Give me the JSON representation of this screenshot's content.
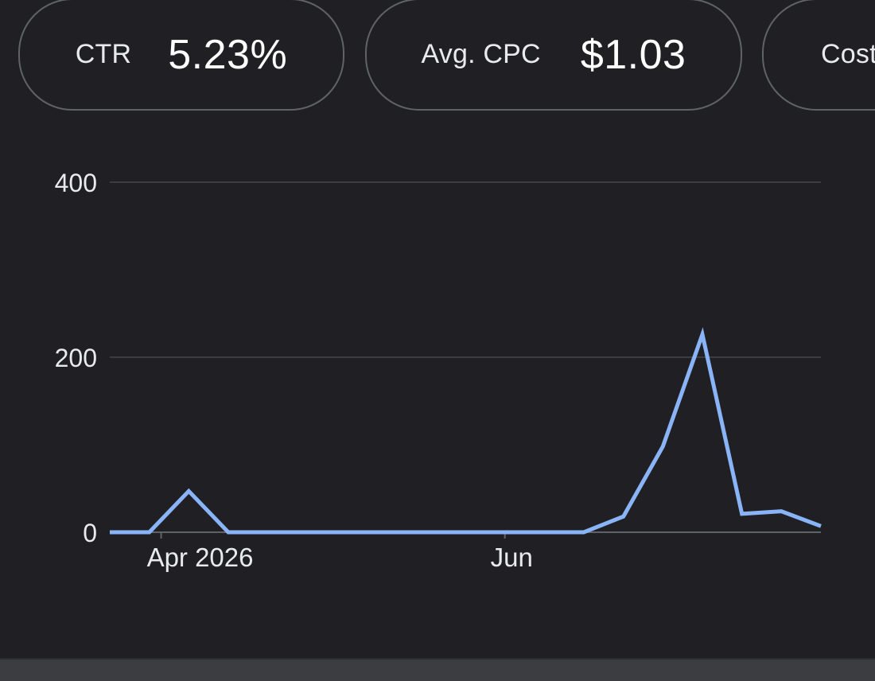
{
  "metrics": [
    {
      "label": "CTR",
      "value": "5.23%"
    },
    {
      "label": "Avg. CPC",
      "value": "$1.03"
    },
    {
      "label": "Cost",
      "value": ""
    }
  ],
  "chart_data": {
    "type": "line",
    "title": "",
    "xlabel": "",
    "ylabel": "",
    "ylim": [
      0,
      400
    ],
    "yticks": [
      0,
      200,
      400
    ],
    "xtick_labels": [
      {
        "label": "Apr 2026",
        "index": 1.3
      },
      {
        "label": "Jun",
        "index": 10.0
      }
    ],
    "grid": true,
    "legend": "none",
    "colors": {
      "line": "#8ab4f8",
      "grid": "#3c3d41",
      "axis": "#5f6368",
      "text": "#e8eaed"
    },
    "series": [
      {
        "values": [
          0,
          0,
          47,
          0,
          0,
          0,
          0,
          0,
          0,
          0,
          0,
          0,
          0,
          18,
          98,
          226,
          21,
          24,
          7
        ]
      }
    ]
  }
}
